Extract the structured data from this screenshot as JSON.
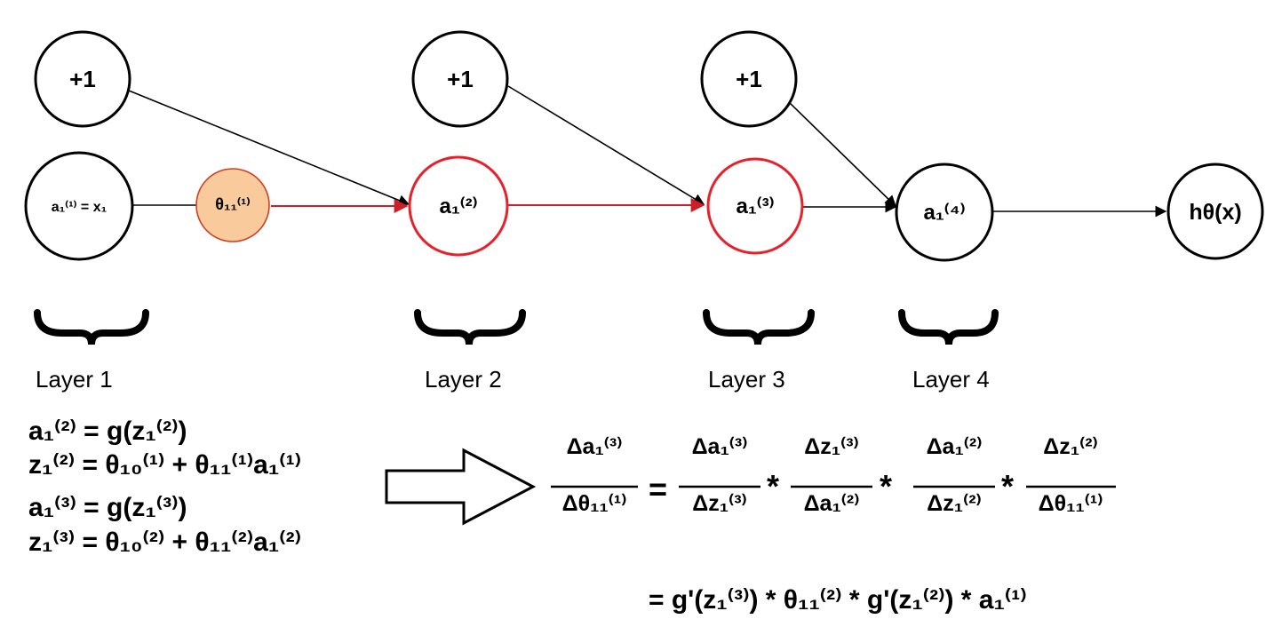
{
  "nodes": {
    "bias1": "+1",
    "bias2": "+1",
    "bias3": "+1",
    "a1_1": "a₁⁽¹⁾ = x₁",
    "theta11_1": "θ₁₁⁽¹⁾",
    "a1_2": "a₁⁽²⁾",
    "a1_3": "a₁⁽³⁾",
    "a1_4": "a₁⁽⁴⁾",
    "output": "hθ(x)"
  },
  "layers": [
    "Layer 1",
    "Layer 2",
    "Layer 3",
    "Layer 4"
  ],
  "equations": [
    "a₁⁽²⁾ = g(z₁⁽²⁾)",
    "z₁⁽²⁾ = θ₁₀⁽¹⁾ + θ₁₁⁽¹⁾a₁⁽¹⁾",
    "a₁⁽³⁾ = g(z₁⁽³⁾)",
    "z₁⁽³⁾ = θ₁₀⁽²⁾ + θ₁₁⁽²⁾a₁⁽²⁾"
  ],
  "chain_rule": {
    "lhs": {
      "num": "Δa₁⁽³⁾",
      "den": "Δθ₁₁⁽¹⁾"
    },
    "equals": "=",
    "times": "*",
    "factors": [
      {
        "num": "Δa₁⁽³⁾",
        "den": "Δz₁⁽³⁾"
      },
      {
        "num": "Δz₁⁽³⁾",
        "den": "Δa₁⁽²⁾"
      },
      {
        "num": "Δa₁⁽²⁾",
        "den": "Δz₁⁽²⁾"
      },
      {
        "num": "Δz₁⁽²⁾",
        "den": "Δθ₁₁⁽¹⁾"
      }
    ],
    "result": "= g'(z₁⁽³⁾) * θ₁₁⁽²⁾ * g'(z₁⁽²⁾) * a₁⁽¹⁾"
  },
  "colors": {
    "highlight_path": "#e8202a",
    "theta_fill": "#f9cb9c",
    "theta_stroke": "#cc4125",
    "line": "#000000"
  }
}
